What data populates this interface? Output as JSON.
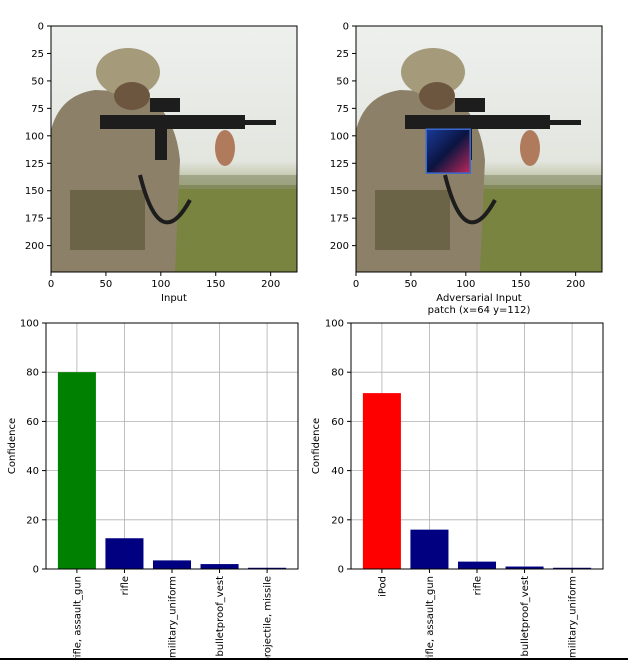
{
  "figure": {
    "colors": {
      "axis": "#000000",
      "grid": "#b0b0b0",
      "sky": "#e9ebe8",
      "field": "#7f8a4c",
      "uniform": "#8b7c62",
      "gun": "#1d1d1d",
      "patch": "#1c2a7a",
      "patch_accent": "#c0285a"
    }
  },
  "chart_data": [
    {
      "type": "image",
      "xlabel": "Input",
      "xticks": [
        0,
        50,
        100,
        150,
        200
      ],
      "yticks": [
        0,
        25,
        50,
        75,
        100,
        125,
        150,
        175,
        200
      ],
      "xlim": [
        0,
        224
      ],
      "ylim": [
        224,
        0
      ],
      "image_icon": "soldier-firing-rifle-photo"
    },
    {
      "type": "image",
      "xlabel": "Adversarial Input",
      "xlabel_line2": "patch (x=64 y=112)",
      "xticks": [
        0,
        50,
        100,
        150,
        200
      ],
      "yticks": [
        0,
        25,
        50,
        75,
        100,
        125,
        150,
        175,
        200
      ],
      "xlim": [
        0,
        224
      ],
      "ylim": [
        224,
        0
      ],
      "image_icon": "soldier-firing-rifle-photo-with-patch",
      "patch": {
        "x": 64,
        "y": 112,
        "w": 40,
        "h": 40
      }
    },
    {
      "type": "bar",
      "ylabel": "Confidence",
      "ylim": [
        0,
        100
      ],
      "yticks": [
        0,
        20,
        40,
        60,
        80,
        100
      ],
      "grid": true,
      "categories": [
        "rifle, assault_gun",
        "rifle",
        "military_uniform",
        "bulletproof_vest",
        "projectile, missile"
      ],
      "values": [
        80,
        12.5,
        3.5,
        2,
        0.5
      ],
      "colors": [
        "#008000",
        "#000080",
        "#000080",
        "#000080",
        "#000080"
      ]
    },
    {
      "type": "bar",
      "ylabel": "Confidence",
      "ylim": [
        0,
        100
      ],
      "yticks": [
        0,
        20,
        40,
        60,
        80,
        100
      ],
      "grid": true,
      "categories": [
        "iPod",
        "rifle, assault_gun",
        "rifle",
        "bulletproof_vest",
        "military_uniform"
      ],
      "values": [
        71.5,
        16,
        3,
        1,
        0.5
      ],
      "colors": [
        "#ff0000",
        "#000080",
        "#000080",
        "#000080",
        "#000080"
      ]
    }
  ]
}
